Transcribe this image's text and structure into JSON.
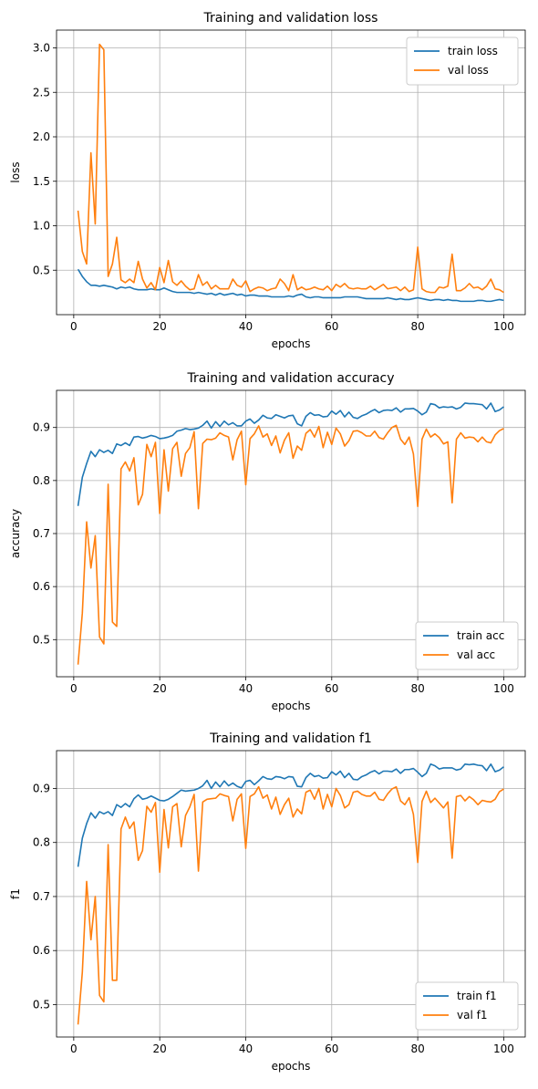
{
  "colors": {
    "train": "#1f77b4",
    "val": "#ff7f0e"
  },
  "chart_data": [
    {
      "type": "line",
      "title": "Training and validation loss",
      "xlabel": "epochs",
      "ylabel": "loss",
      "xlim": [
        -4,
        105
      ],
      "ylim": [
        0.0,
        3.2
      ],
      "xticks": [
        0,
        20,
        40,
        60,
        80,
        100
      ],
      "yticks": [
        0.5,
        1.0,
        1.5,
        2.0,
        2.5,
        3.0
      ],
      "ytick_labels": [
        "0.5",
        "1.0",
        "1.5",
        "2.0",
        "2.5",
        "3.0"
      ],
      "grid": true,
      "legend": "top-right",
      "series": [
        {
          "name": "train loss",
          "values": [
            0.51,
            0.43,
            0.37,
            0.33,
            0.33,
            0.32,
            0.33,
            0.32,
            0.31,
            0.29,
            0.31,
            0.3,
            0.31,
            0.29,
            0.28,
            0.28,
            0.28,
            0.29,
            0.28,
            0.28,
            0.3,
            0.28,
            0.26,
            0.25,
            0.25,
            0.25,
            0.25,
            0.24,
            0.25,
            0.24,
            0.23,
            0.24,
            0.22,
            0.24,
            0.22,
            0.23,
            0.24,
            0.22,
            0.23,
            0.21,
            0.22,
            0.22,
            0.21,
            0.21,
            0.21,
            0.2,
            0.2,
            0.2,
            0.2,
            0.21,
            0.2,
            0.22,
            0.23,
            0.2,
            0.19,
            0.2,
            0.2,
            0.19,
            0.19,
            0.19,
            0.19,
            0.19,
            0.2,
            0.2,
            0.2,
            0.2,
            0.19,
            0.18,
            0.18,
            0.18,
            0.18,
            0.18,
            0.19,
            0.18,
            0.17,
            0.18,
            0.17,
            0.17,
            0.18,
            0.19,
            0.18,
            0.17,
            0.16,
            0.17,
            0.17,
            0.16,
            0.17,
            0.16,
            0.16,
            0.15,
            0.15,
            0.15,
            0.15,
            0.16,
            0.16,
            0.15,
            0.15,
            0.16,
            0.17,
            0.16
          ]
        },
        {
          "name": "val loss",
          "values": [
            1.17,
            0.71,
            0.57,
            1.82,
            1.02,
            3.04,
            2.98,
            0.43,
            0.57,
            0.87,
            0.39,
            0.36,
            0.4,
            0.36,
            0.6,
            0.4,
            0.3,
            0.36,
            0.28,
            0.53,
            0.36,
            0.61,
            0.37,
            0.33,
            0.38,
            0.32,
            0.28,
            0.29,
            0.45,
            0.33,
            0.37,
            0.29,
            0.33,
            0.29,
            0.29,
            0.29,
            0.4,
            0.33,
            0.31,
            0.38,
            0.26,
            0.29,
            0.31,
            0.3,
            0.27,
            0.29,
            0.3,
            0.4,
            0.35,
            0.27,
            0.45,
            0.28,
            0.31,
            0.28,
            0.29,
            0.31,
            0.29,
            0.28,
            0.32,
            0.27,
            0.34,
            0.31,
            0.35,
            0.3,
            0.29,
            0.3,
            0.29,
            0.29,
            0.32,
            0.28,
            0.31,
            0.34,
            0.29,
            0.3,
            0.31,
            0.27,
            0.31,
            0.26,
            0.28,
            0.76,
            0.29,
            0.26,
            0.25,
            0.25,
            0.31,
            0.3,
            0.32,
            0.68,
            0.27,
            0.27,
            0.3,
            0.35,
            0.3,
            0.31,
            0.28,
            0.32,
            0.4,
            0.29,
            0.28,
            0.25
          ]
        }
      ]
    },
    {
      "type": "line",
      "title": "Training and validation accuracy",
      "xlabel": "epochs",
      "ylabel": "accuracy",
      "xlim": [
        -4,
        105
      ],
      "ylim": [
        0.43,
        0.97
      ],
      "xticks": [
        0,
        20,
        40,
        60,
        80,
        100
      ],
      "yticks": [
        0.5,
        0.6,
        0.7,
        0.8,
        0.9
      ],
      "ytick_labels": [
        "0.5",
        "0.6",
        "0.7",
        "0.8",
        "0.9"
      ],
      "grid": true,
      "legend": "bottom-right",
      "series": [
        {
          "name": "train acc",
          "values": [
            0.752,
            0.806,
            0.832,
            0.855,
            0.845,
            0.858,
            0.853,
            0.857,
            0.851,
            0.869,
            0.866,
            0.871,
            0.866,
            0.882,
            0.883,
            0.88,
            0.882,
            0.885,
            0.883,
            0.879,
            0.88,
            0.882,
            0.885,
            0.893,
            0.895,
            0.898,
            0.896,
            0.897,
            0.899,
            0.904,
            0.912,
            0.899,
            0.911,
            0.902,
            0.912,
            0.905,
            0.909,
            0.903,
            0.903,
            0.912,
            0.916,
            0.908,
            0.914,
            0.923,
            0.918,
            0.917,
            0.924,
            0.921,
            0.918,
            0.922,
            0.923,
            0.907,
            0.903,
            0.921,
            0.928,
            0.923,
            0.924,
            0.92,
            0.921,
            0.931,
            0.925,
            0.932,
            0.92,
            0.929,
            0.919,
            0.917,
            0.922,
            0.925,
            0.93,
            0.934,
            0.928,
            0.932,
            0.933,
            0.932,
            0.937,
            0.929,
            0.935,
            0.935,
            0.936,
            0.931,
            0.924,
            0.929,
            0.945,
            0.943,
            0.937,
            0.939,
            0.938,
            0.939,
            0.935,
            0.938,
            0.946,
            0.945,
            0.945,
            0.944,
            0.943,
            0.935,
            0.946,
            0.93,
            0.933,
            0.939
          ]
        },
        {
          "name": "val acc",
          "values": [
            0.453,
            0.55,
            0.722,
            0.635,
            0.696,
            0.505,
            0.492,
            0.793,
            0.533,
            0.525,
            0.822,
            0.835,
            0.818,
            0.843,
            0.754,
            0.774,
            0.868,
            0.845,
            0.872,
            0.738,
            0.858,
            0.78,
            0.86,
            0.872,
            0.808,
            0.851,
            0.862,
            0.892,
            0.747,
            0.87,
            0.878,
            0.877,
            0.88,
            0.89,
            0.885,
            0.882,
            0.839,
            0.877,
            0.893,
            0.792,
            0.879,
            0.888,
            0.903,
            0.882,
            0.888,
            0.866,
            0.884,
            0.852,
            0.876,
            0.89,
            0.842,
            0.865,
            0.857,
            0.889,
            0.896,
            0.882,
            0.902,
            0.862,
            0.891,
            0.868,
            0.899,
            0.888,
            0.865,
            0.875,
            0.893,
            0.894,
            0.89,
            0.884,
            0.884,
            0.893,
            0.881,
            0.878,
            0.89,
            0.9,
            0.904,
            0.878,
            0.868,
            0.882,
            0.85,
            0.751,
            0.878,
            0.897,
            0.882,
            0.888,
            0.881,
            0.869,
            0.873,
            0.758,
            0.878,
            0.89,
            0.88,
            0.882,
            0.881,
            0.873,
            0.882,
            0.873,
            0.871,
            0.886,
            0.894,
            0.898
          ]
        }
      ]
    },
    {
      "type": "line",
      "title": "Training and validation f1",
      "xlabel": "epochs",
      "ylabel": "f1",
      "xlim": [
        -4,
        105
      ],
      "ylim": [
        0.44,
        0.97
      ],
      "xticks": [
        0,
        20,
        40,
        60,
        80,
        100
      ],
      "yticks": [
        0.5,
        0.6,
        0.7,
        0.8,
        0.9
      ],
      "ytick_labels": [
        "0.5",
        "0.6",
        "0.7",
        "0.8",
        "0.9"
      ],
      "grid": true,
      "legend": "bottom-right",
      "series": [
        {
          "name": "train f1",
          "values": [
            0.755,
            0.808,
            0.835,
            0.855,
            0.845,
            0.857,
            0.853,
            0.857,
            0.85,
            0.87,
            0.865,
            0.872,
            0.866,
            0.881,
            0.888,
            0.88,
            0.882,
            0.886,
            0.882,
            0.878,
            0.877,
            0.88,
            0.885,
            0.891,
            0.897,
            0.895,
            0.896,
            0.897,
            0.9,
            0.905,
            0.915,
            0.9,
            0.912,
            0.903,
            0.914,
            0.905,
            0.91,
            0.904,
            0.901,
            0.913,
            0.915,
            0.907,
            0.914,
            0.922,
            0.918,
            0.917,
            0.922,
            0.921,
            0.918,
            0.922,
            0.921,
            0.904,
            0.903,
            0.92,
            0.928,
            0.922,
            0.924,
            0.919,
            0.92,
            0.931,
            0.925,
            0.932,
            0.92,
            0.928,
            0.917,
            0.916,
            0.922,
            0.925,
            0.93,
            0.933,
            0.927,
            0.932,
            0.932,
            0.931,
            0.936,
            0.928,
            0.935,
            0.935,
            0.937,
            0.93,
            0.922,
            0.928,
            0.945,
            0.942,
            0.936,
            0.938,
            0.938,
            0.938,
            0.934,
            0.936,
            0.945,
            0.944,
            0.945,
            0.943,
            0.942,
            0.933,
            0.945,
            0.931,
            0.934,
            0.94
          ]
        },
        {
          "name": "val f1",
          "values": [
            0.463,
            0.56,
            0.728,
            0.62,
            0.7,
            0.517,
            0.505,
            0.796,
            0.545,
            0.545,
            0.825,
            0.847,
            0.826,
            0.838,
            0.767,
            0.785,
            0.867,
            0.856,
            0.874,
            0.745,
            0.861,
            0.79,
            0.866,
            0.872,
            0.792,
            0.85,
            0.866,
            0.889,
            0.747,
            0.875,
            0.88,
            0.881,
            0.882,
            0.89,
            0.887,
            0.885,
            0.84,
            0.88,
            0.89,
            0.789,
            0.885,
            0.89,
            0.903,
            0.882,
            0.888,
            0.862,
            0.884,
            0.852,
            0.87,
            0.882,
            0.847,
            0.862,
            0.853,
            0.893,
            0.897,
            0.88,
            0.9,
            0.862,
            0.889,
            0.866,
            0.9,
            0.887,
            0.864,
            0.87,
            0.893,
            0.895,
            0.889,
            0.886,
            0.886,
            0.893,
            0.88,
            0.878,
            0.89,
            0.899,
            0.903,
            0.877,
            0.87,
            0.883,
            0.852,
            0.763,
            0.876,
            0.895,
            0.874,
            0.882,
            0.873,
            0.864,
            0.875,
            0.771,
            0.885,
            0.887,
            0.877,
            0.885,
            0.879,
            0.87,
            0.878,
            0.876,
            0.875,
            0.88,
            0.894,
            0.899
          ]
        }
      ]
    }
  ]
}
